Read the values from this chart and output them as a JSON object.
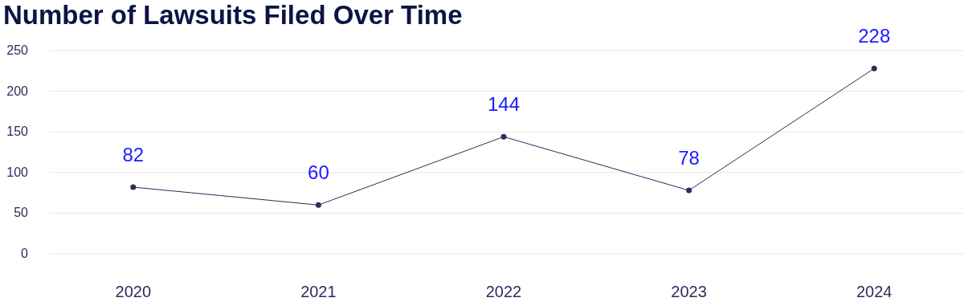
{
  "chart_data": {
    "type": "line",
    "title": "Number of Lawsuits Filed Over Time",
    "categories": [
      "2020",
      "2021",
      "2022",
      "2023",
      "2024"
    ],
    "values": [
      82,
      60,
      144,
      78,
      228
    ],
    "color": "#2b2d5c",
    "ylim": [
      0,
      250
    ],
    "yticks": [
      0,
      50,
      100,
      150,
      200,
      250
    ],
    "grid": "y",
    "marker": "circle",
    "line_style": "solid",
    "data_labels": true
  }
}
